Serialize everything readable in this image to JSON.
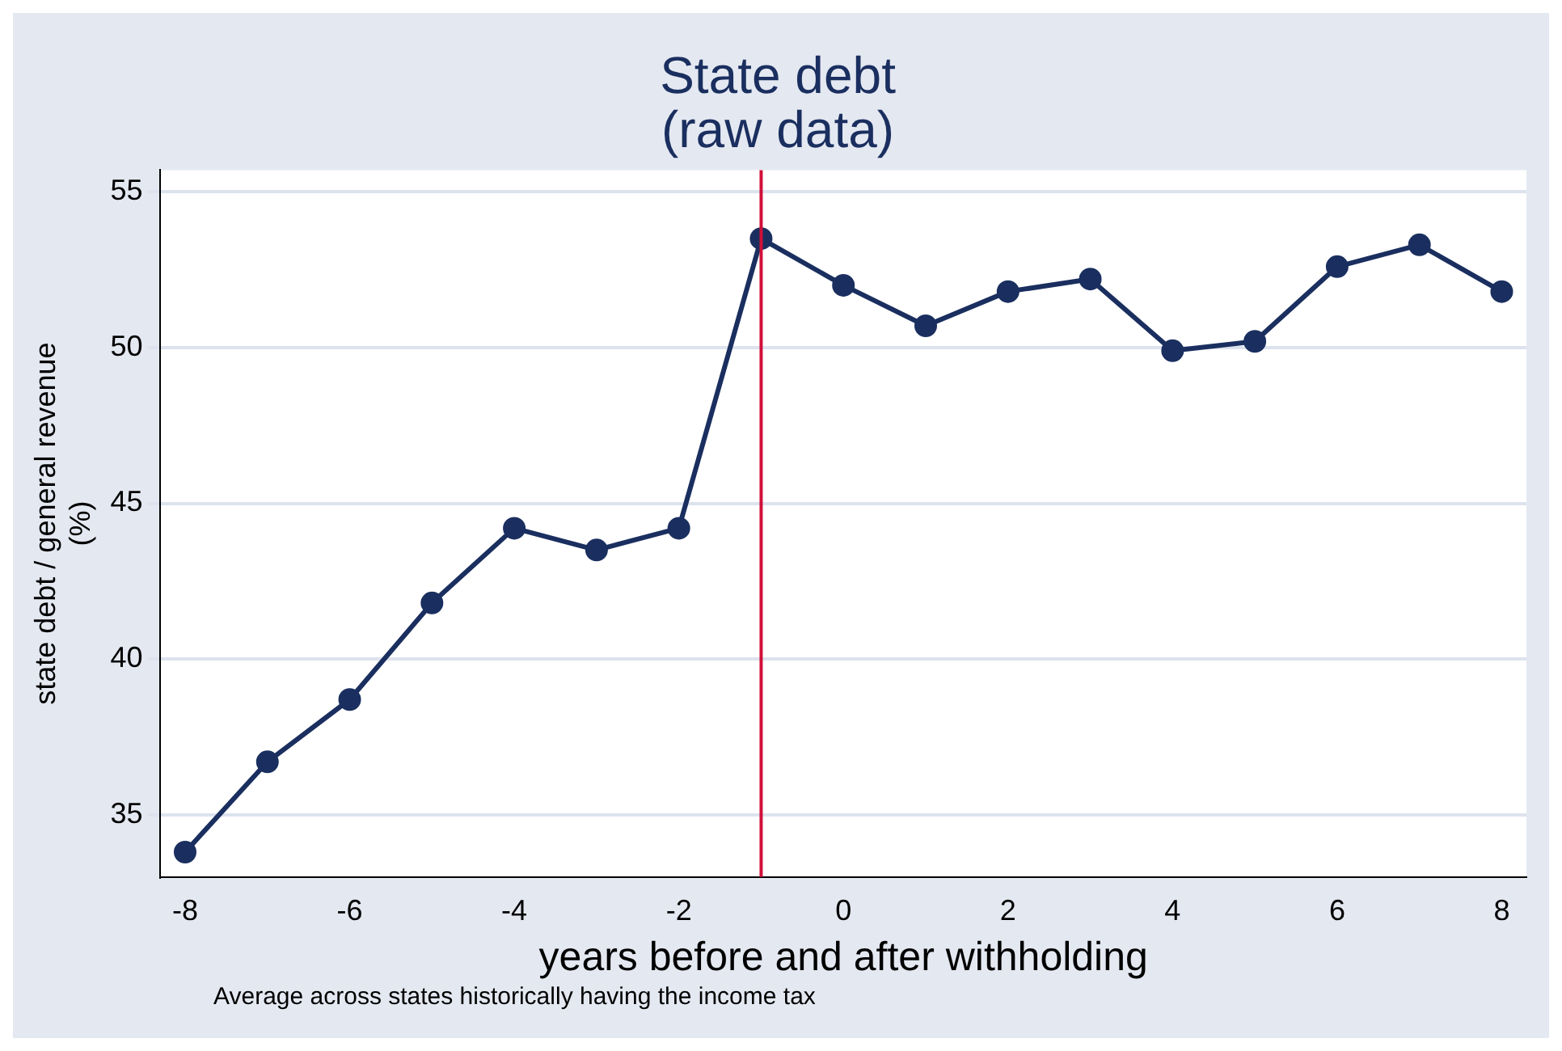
{
  "chart_data": {
    "type": "line",
    "title": "State debt\n(raw data)",
    "xlabel": "years before and after withholding",
    "ylabel": "state debt / general revenue\n(%)",
    "x": [
      -8,
      -7,
      -6,
      -5,
      -4,
      -3,
      -2,
      -1,
      0,
      1,
      2,
      3,
      4,
      5,
      6,
      7,
      8
    ],
    "series": [
      {
        "color": "#1a2f5f",
        "values": [
          33.8,
          36.7,
          38.7,
          41.8,
          44.2,
          43.5,
          44.2,
          53.5,
          52.0,
          50.7,
          51.8,
          52.2,
          49.9,
          50.2,
          52.6,
          53.3,
          51.8
        ]
      }
    ],
    "xlim": [
      -8.3,
      8.3
    ],
    "xticks": [
      -8,
      -6,
      -4,
      -2,
      0,
      2,
      4,
      6,
      8
    ],
    "ylim": [
      33,
      55.7
    ],
    "yticks": [
      35,
      40,
      45,
      50,
      55
    ],
    "ref_lines": [
      {
        "axis": "x",
        "value": -1,
        "color": "#d0103a"
      }
    ],
    "grid": "y",
    "marker": "circle",
    "line_style": "solid",
    "legend": false,
    "annotations": [
      "Average across states historically having the income tax"
    ]
  }
}
